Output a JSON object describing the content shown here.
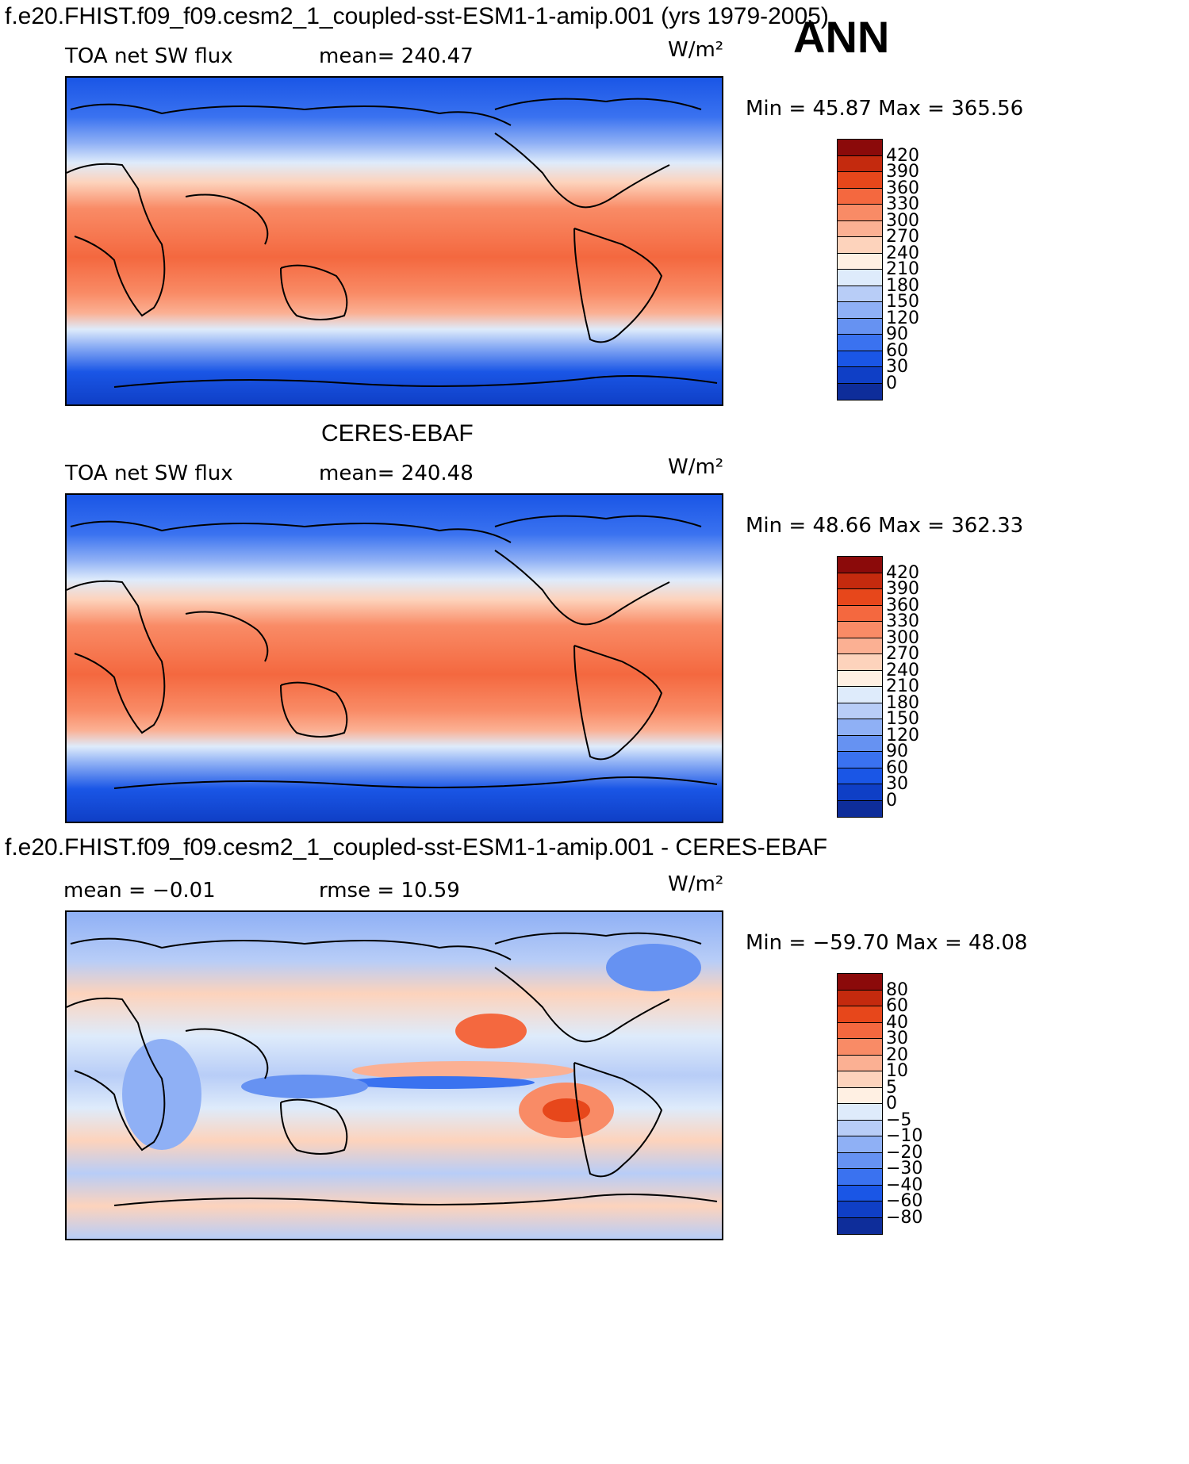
{
  "season": "ANN",
  "colors": {
    "abs_scale": [
      "#06166b",
      "#0e2d9a",
      "#0f3fc6",
      "#1a56e6",
      "#3a72f0",
      "#6692f2",
      "#8fb0f5",
      "#b8cdf7",
      "#deebfb",
      "#fff0e3",
      "#fdd3bc",
      "#fbb093",
      "#f98b66",
      "#f4683f",
      "#e7471b",
      "#c42a0e",
      "#8b0a0a"
    ],
    "diff_scale": [
      "#06166b",
      "#0e2d9a",
      "#0f3fc6",
      "#1a56e6",
      "#3a72f0",
      "#6692f2",
      "#8fb0f5",
      "#b8cdf7",
      "#deebfb",
      "#ffffff",
      "#fff0e3",
      "#fdd3bc",
      "#fbb093",
      "#f98b66",
      "#f4683f",
      "#e7471b",
      "#c42a0e",
      "#8b0a0a"
    ]
  },
  "chart_data": [
    {
      "type": "heatmap",
      "title": "f.e20.FHIST.f09_f09.cesm2_1_coupled-sst-ESM1-1-amip.001 (yrs 1979-2005)",
      "variable": "TOA net SW flux",
      "stat_text": "mean= 240.47",
      "units": "W/m²",
      "min_max_text": "Min  =    45.87  Max  =  365.56",
      "min": 45.87,
      "max": 365.56,
      "mean": 240.47,
      "colorbar_levels": [
        "420",
        "390",
        "360",
        "330",
        "300",
        "270",
        "240",
        "210",
        "180",
        "150",
        "120",
        "90",
        "60",
        "30",
        "0"
      ]
    },
    {
      "type": "heatmap",
      "title": "CERES-EBAF",
      "variable": "TOA net SW flux",
      "stat_text": "mean= 240.48",
      "units": "W/m²",
      "min_max_text": "Min  =    48.66  Max  =  362.33",
      "min": 48.66,
      "max": 362.33,
      "mean": 240.48,
      "colorbar_levels": [
        "420",
        "390",
        "360",
        "330",
        "300",
        "270",
        "240",
        "210",
        "180",
        "150",
        "120",
        "90",
        "60",
        "30",
        "0"
      ]
    },
    {
      "type": "heatmap",
      "title": "f.e20.FHIST.f09_f09.cesm2_1_coupled-sst-ESM1-1-amip.001 - CERES-EBAF",
      "stat_text": "mean  =     −0.01",
      "rmse_text": "rmse  =     10.59",
      "units": "W/m²",
      "min_max_text": "Min  = −59.70  Max  =    48.08",
      "min": -59.7,
      "max": 48.08,
      "mean": -0.01,
      "rmse": 10.59,
      "colorbar_levels": [
        "80",
        "60",
        "40",
        "30",
        "20",
        "10",
        "5",
        "0",
        "−5",
        "−10",
        "−20",
        "−30",
        "−40",
        "−60",
        "−80"
      ]
    }
  ]
}
